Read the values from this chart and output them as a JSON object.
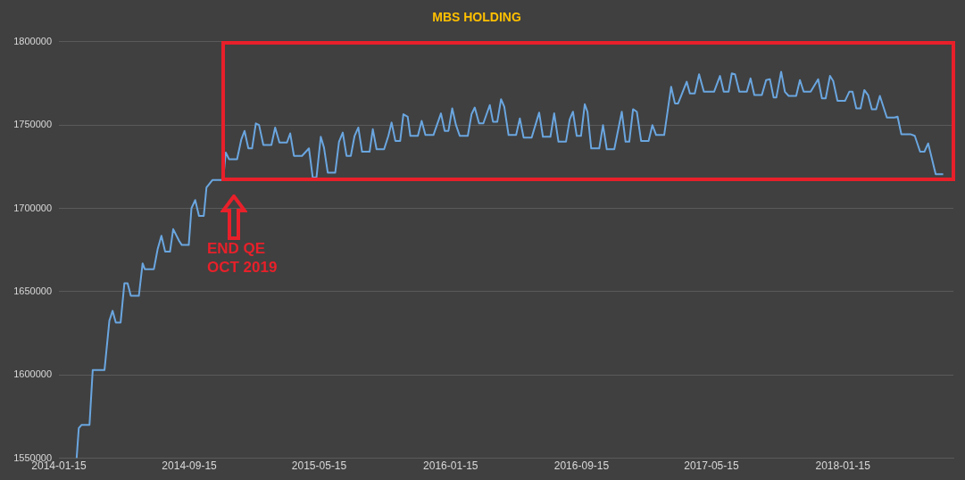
{
  "chart_data": {
    "type": "line",
    "title": "MBS HOLDING",
    "color": "#6aa6e0",
    "marker": "none",
    "grid": "y",
    "legend": false,
    "annotations": [
      "END QE OCT 2019"
    ],
    "x": [
      "2014-02-17",
      "2014-02-21",
      "2014-02-26",
      "2014-03-13",
      "2014-03-19",
      "2014-04-10",
      "2014-04-19",
      "2014-04-25",
      "2014-05-01",
      "2014-05-10",
      "2014-05-17",
      "2014-05-23",
      "2014-05-29",
      "2014-06-13",
      "2014-06-20",
      "2014-06-24",
      "2014-07-11",
      "2014-07-18",
      "2014-07-25",
      "2014-08-01",
      "2014-08-10",
      "2014-08-16",
      "2014-08-27",
      "2014-09-01",
      "2014-09-14",
      "2014-09-19",
      "2014-09-26",
      "2014-10-03",
      "2014-10-12",
      "2014-10-17",
      "2014-10-28",
      "2014-11-17",
      "2014-11-22",
      "2014-11-28",
      "2014-12-13",
      "2014-12-21",
      "2014-12-27",
      "2015-01-03",
      "2015-01-10",
      "2015-01-17",
      "2015-01-23",
      "2015-01-31",
      "2015-02-15",
      "2015-02-22",
      "2015-03-02",
      "2015-03-16",
      "2015-03-22",
      "2015-03-29",
      "2015-04-13",
      "2015-04-26",
      "2015-05-03",
      "2015-05-10",
      "2015-05-18",
      "2015-05-24",
      "2015-05-31",
      "2015-06-14",
      "2015-06-21",
      "2015-06-28",
      "2015-07-05",
      "2015-07-13",
      "2015-07-20",
      "2015-07-27",
      "2015-08-03",
      "2015-08-17",
      "2015-08-23",
      "2015-08-30",
      "2015-09-13",
      "2015-09-21",
      "2015-09-27",
      "2015-10-04",
      "2015-10-13",
      "2015-10-19",
      "2015-10-27",
      "2015-11-01",
      "2015-11-15",
      "2015-11-22",
      "2015-11-29",
      "2015-12-14",
      "2015-12-28",
      "2016-01-04",
      "2016-01-11",
      "2016-01-18",
      "2016-01-25",
      "2016-02-01",
      "2016-02-16",
      "2016-02-23",
      "2016-02-29",
      "2016-03-08",
      "2016-03-16",
      "2016-03-28",
      "2016-04-03",
      "2016-04-11",
      "2016-04-18",
      "2016-04-24",
      "2016-05-02",
      "2016-05-16",
      "2016-05-23",
      "2016-05-30",
      "2016-06-14",
      "2016-06-28",
      "2016-07-05",
      "2016-07-19",
      "2016-07-26",
      "2016-08-03",
      "2016-08-17",
      "2016-08-24",
      "2016-08-30",
      "2016-09-06",
      "2016-09-14",
      "2016-09-21",
      "2016-09-26",
      "2016-10-03",
      "2016-10-18",
      "2016-10-25",
      "2016-11-01",
      "2016-11-15",
      "2016-11-29",
      "2016-12-06",
      "2016-12-13",
      "2016-12-20",
      "2016-12-27",
      "2017-01-04",
      "2017-01-18",
      "2017-01-25",
      "2017-02-01",
      "2017-02-16",
      "2017-03-01",
      "2017-03-08",
      "2017-03-14",
      "2017-03-30",
      "2017-04-05",
      "2017-04-14",
      "2017-04-22",
      "2017-05-01",
      "2017-05-20",
      "2017-05-31",
      "2017-06-07",
      "2017-06-16",
      "2017-06-22",
      "2017-06-28",
      "2017-07-06",
      "2017-07-20",
      "2017-07-27",
      "2017-08-03",
      "2017-08-17",
      "2017-08-25",
      "2017-09-01",
      "2017-09-08",
      "2017-09-13",
      "2017-09-22",
      "2017-09-29",
      "2017-10-06",
      "2017-10-20",
      "2017-10-27",
      "2017-11-03",
      "2017-11-16",
      "2017-11-30",
      "2017-12-07",
      "2017-12-14",
      "2017-12-22",
      "2017-12-28",
      "2018-01-05",
      "2018-01-19",
      "2018-01-27",
      "2018-02-02",
      "2018-02-09",
      "2018-02-17",
      "2018-02-24",
      "2018-03-03",
      "2018-03-10",
      "2018-03-18",
      "2018-03-25",
      "2018-04-07",
      "2018-04-21",
      "2018-04-27",
      "2018-05-04",
      "2018-05-21",
      "2018-05-29",
      "2018-06-08",
      "2018-06-16",
      "2018-06-23",
      "2018-07-07",
      "2018-07-21"
    ],
    "values": [
      1550000,
      1568000,
      1570000,
      1570000,
      1603000,
      1603000,
      1632500,
      1638500,
      1631500,
      1631500,
      1655000,
      1655000,
      1647500,
      1647500,
      1667000,
      1663500,
      1663500,
      1675500,
      1683500,
      1674000,
      1674000,
      1687500,
      1680500,
      1678000,
      1678000,
      1700000,
      1705000,
      1695500,
      1695500,
      1712500,
      1717000,
      1717000,
      1733500,
      1729500,
      1729500,
      1741500,
      1746500,
      1736000,
      1736000,
      1751000,
      1750000,
      1738000,
      1738000,
      1748500,
      1739500,
      1739500,
      1745000,
      1731500,
      1731500,
      1736000,
      1718500,
      1718500,
      1743000,
      1736500,
      1721500,
      1721500,
      1740000,
      1745500,
      1731500,
      1731500,
      1743500,
      1748500,
      1734000,
      1734000,
      1747500,
      1735500,
      1735500,
      1743500,
      1751500,
      1740500,
      1740500,
      1756500,
      1755000,
      1743500,
      1743500,
      1752500,
      1744000,
      1744000,
      1757000,
      1746500,
      1746500,
      1760000,
      1750000,
      1743500,
      1743500,
      1756500,
      1760500,
      1751000,
      1751000,
      1762000,
      1752000,
      1752000,
      1765500,
      1761000,
      1744000,
      1744000,
      1754000,
      1742500,
      1742500,
      1757500,
      1743000,
      1743000,
      1757000,
      1740000,
      1740000,
      1753500,
      1758000,
      1743500,
      1743500,
      1762500,
      1758000,
      1736000,
      1736000,
      1750000,
      1735500,
      1735500,
      1758000,
      1740000,
      1740000,
      1759500,
      1758000,
      1740500,
      1740500,
      1750000,
      1744000,
      1744000,
      1773000,
      1763000,
      1763000,
      1776000,
      1769000,
      1769000,
      1780500,
      1770000,
      1770000,
      1779500,
      1770000,
      1770000,
      1781000,
      1780500,
      1770000,
      1770000,
      1778000,
      1768000,
      1768000,
      1777000,
      1777500,
      1766500,
      1766500,
      1782000,
      1770000,
      1767500,
      1767500,
      1777000,
      1770000,
      1770000,
      1777500,
      1766000,
      1766000,
      1779500,
      1776500,
      1764500,
      1764500,
      1770000,
      1770000,
      1760000,
      1760000,
      1771000,
      1768000,
      1759500,
      1759500,
      1767500,
      1754500,
      1754500,
      1755000,
      1744500,
      1744500,
      1743500,
      1734000,
      1734000,
      1739000,
      1720500,
      1720500
    ],
    "xlim": [
      "2014-01-15",
      "2018-08-09"
    ],
    "xticks": [
      "2014-01-15",
      "2014-09-15",
      "2015-05-15",
      "2016-01-15",
      "2016-09-15",
      "2017-05-15",
      "2018-01-15"
    ],
    "ylim": [
      1550000,
      1800000
    ],
    "yticks": [
      1550000,
      1600000,
      1650000,
      1700000,
      1750000,
      1800000
    ]
  }
}
